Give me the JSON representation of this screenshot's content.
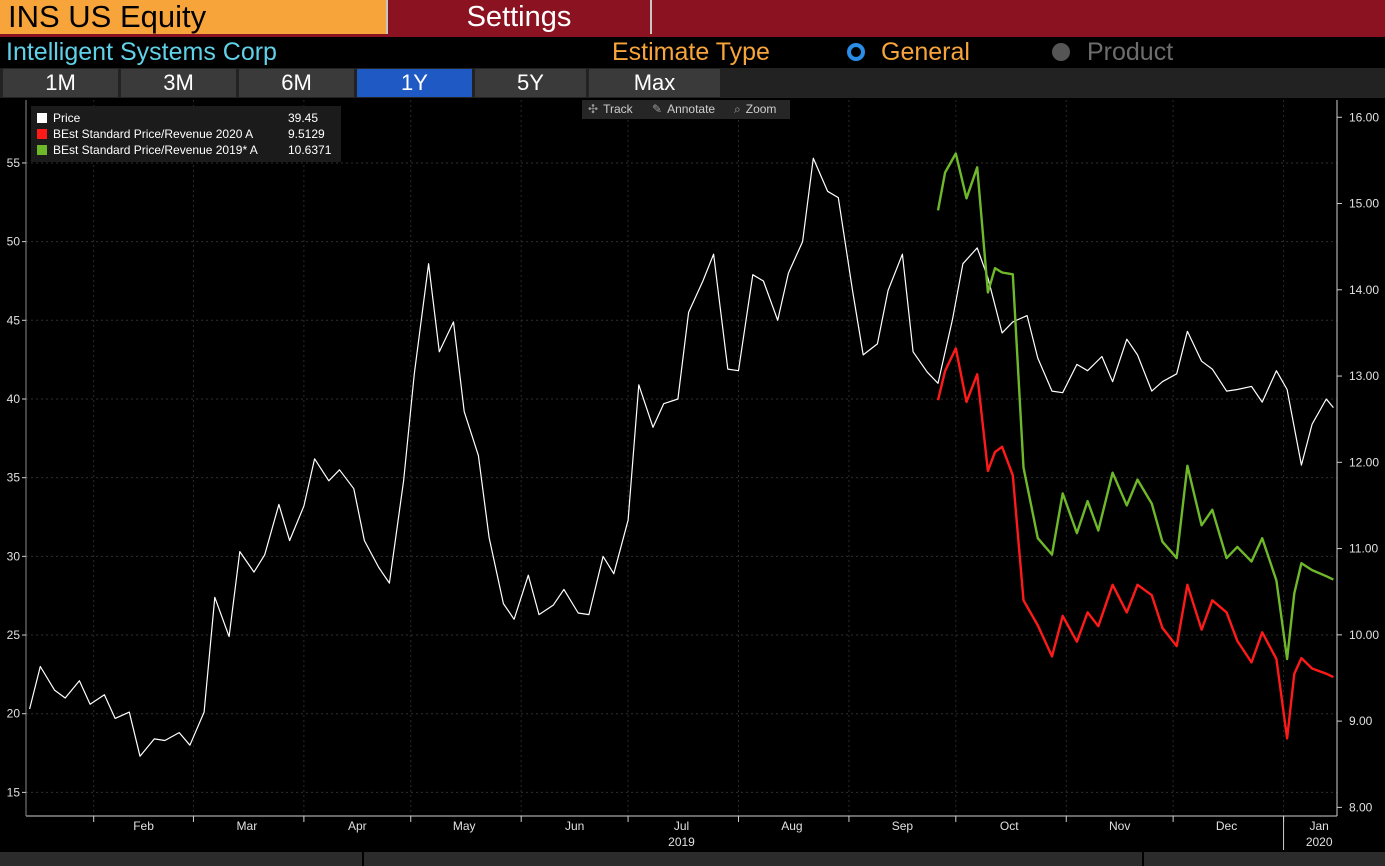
{
  "header": {
    "ticker": "INS US Equity",
    "settings_label": "Settings",
    "company": "Intelligent Systems Corp",
    "estimate_type_label": "Estimate Type",
    "option_general": "General",
    "option_product": "Product",
    "selected_option": "General"
  },
  "range_tabs": [
    "1M",
    "3M",
    "6M",
    "1Y",
    "5Y",
    "Max"
  ],
  "active_range": "1Y",
  "tools": {
    "track": "Track",
    "annotate": "Annotate",
    "zoom": "Zoom"
  },
  "legend": [
    {
      "name": "Price",
      "value": "39.45",
      "color": "#ffffff"
    },
    {
      "name": "BEst Standard Price/Revenue 2020 A",
      "value": "9.5129",
      "color": "#ff1a1a"
    },
    {
      "name": "BEst Standard Price/Revenue 2019* A",
      "value": "10.6371",
      "color": "#6fb82a"
    }
  ],
  "chart_data": {
    "type": "line",
    "title": "",
    "xlabel": "",
    "x_ticks": [
      "Feb",
      "Mar",
      "Apr",
      "May",
      "Jun",
      "Jul",
      "Aug",
      "Sep",
      "Oct",
      "Nov",
      "Dec",
      "Jan"
    ],
    "x_year_labels": [
      {
        "label": "2019",
        "under": "Jul"
      },
      {
        "label": "2020",
        "under": "Jan"
      }
    ],
    "x_range": [
      "2019-01-13",
      "2020-01-16"
    ],
    "left_axis": {
      "ticks": [
        15,
        20,
        25,
        30,
        35,
        40,
        45,
        50,
        55
      ],
      "ylim": [
        13.5,
        59.0
      ],
      "series": [
        "Price"
      ]
    },
    "right_axis": {
      "ticks": [
        "8.00",
        "9.00",
        "10.00",
        "11.00",
        "12.00",
        "13.00",
        "14.00",
        "15.00",
        "16.00"
      ],
      "ylim": [
        7.9,
        16.2
      ],
      "series": [
        "BEst Standard Price/Revenue 2020 A",
        "BEst Standard Price/Revenue 2019* A"
      ]
    },
    "grid": true,
    "legend_position": "top-left",
    "series": [
      {
        "name": "Price",
        "color": "#ffffff",
        "axis": "left",
        "x": [
          "2019-01-14",
          "2019-01-17",
          "2019-01-21",
          "2019-01-24",
          "2019-01-28",
          "2019-01-31",
          "2019-02-04",
          "2019-02-07",
          "2019-02-11",
          "2019-02-14",
          "2019-02-18",
          "2019-02-21",
          "2019-02-25",
          "2019-02-28",
          "2019-03-04",
          "2019-03-07",
          "2019-03-11",
          "2019-03-14",
          "2019-03-18",
          "2019-03-21",
          "2019-03-25",
          "2019-03-28",
          "2019-04-01",
          "2019-04-04",
          "2019-04-08",
          "2019-04-11",
          "2019-04-15",
          "2019-04-18",
          "2019-04-22",
          "2019-04-25",
          "2019-04-29",
          "2019-05-02",
          "2019-05-06",
          "2019-05-09",
          "2019-05-13",
          "2019-05-16",
          "2019-05-20",
          "2019-05-23",
          "2019-05-27",
          "2019-05-30",
          "2019-06-03",
          "2019-06-06",
          "2019-06-10",
          "2019-06-13",
          "2019-06-17",
          "2019-06-20",
          "2019-06-24",
          "2019-06-27",
          "2019-07-01",
          "2019-07-04",
          "2019-07-08",
          "2019-07-11",
          "2019-07-15",
          "2019-07-18",
          "2019-07-22",
          "2019-07-25",
          "2019-07-29",
          "2019-08-01",
          "2019-08-05",
          "2019-08-08",
          "2019-08-12",
          "2019-08-15",
          "2019-08-19",
          "2019-08-22",
          "2019-08-26",
          "2019-08-29",
          "2019-09-02",
          "2019-09-05",
          "2019-09-09",
          "2019-09-12",
          "2019-09-16",
          "2019-09-19",
          "2019-09-23",
          "2019-09-26",
          "2019-09-30",
          "2019-10-03",
          "2019-10-07",
          "2019-10-10",
          "2019-10-14",
          "2019-10-17",
          "2019-10-21",
          "2019-10-24",
          "2019-10-28",
          "2019-10-31",
          "2019-11-04",
          "2019-11-07",
          "2019-11-11",
          "2019-11-14",
          "2019-11-18",
          "2019-11-21",
          "2019-11-25",
          "2019-11-28",
          "2019-12-02",
          "2019-12-05",
          "2019-12-09",
          "2019-12-12",
          "2019-12-16",
          "2019-12-19",
          "2019-12-23",
          "2019-12-26",
          "2019-12-30",
          "2020-01-02",
          "2020-01-06",
          "2020-01-09",
          "2020-01-13",
          "2020-01-15"
        ],
        "values": [
          20.3,
          23.0,
          21.5,
          21.0,
          22.1,
          20.6,
          21.2,
          19.7,
          20.1,
          17.3,
          18.4,
          18.3,
          18.8,
          18.0,
          20.1,
          27.4,
          24.9,
          30.3,
          29.0,
          30.1,
          33.3,
          31.0,
          33.2,
          36.2,
          34.8,
          35.5,
          34.3,
          31.0,
          29.3,
          28.3,
          34.8,
          41.6,
          48.6,
          43.0,
          44.9,
          39.2,
          36.4,
          31.2,
          27.0,
          26.0,
          28.8,
          26.3,
          26.9,
          27.9,
          26.4,
          26.3,
          30.0,
          28.9,
          32.3,
          40.9,
          38.2,
          39.7,
          40.0,
          45.5,
          47.5,
          49.2,
          41.9,
          41.8,
          47.9,
          47.5,
          45.0,
          48.0,
          50.0,
          55.3,
          53.2,
          52.8,
          46.9,
          42.8,
          43.5,
          46.9,
          49.2,
          43.0,
          41.7,
          41.0,
          45.0,
          48.6,
          49.6,
          47.7,
          44.2,
          44.9,
          45.3,
          42.6,
          40.5,
          40.4,
          42.2,
          41.8,
          42.7,
          41.1,
          43.8,
          42.8,
          40.5,
          41.1,
          41.6,
          44.3,
          42.4,
          41.9,
          40.5,
          40.6,
          40.8,
          39.8,
          41.8,
          40.6,
          35.8,
          38.4,
          40.0,
          39.45
        ]
      },
      {
        "name": "BEst Standard Price/Revenue 2020 A",
        "color": "#ff1a1a",
        "axis": "right",
        "x": [
          "2019-09-26",
          "2019-09-28",
          "2019-10-01",
          "2019-10-04",
          "2019-10-07",
          "2019-10-10",
          "2019-10-12",
          "2019-10-14",
          "2019-10-17",
          "2019-10-20",
          "2019-10-24",
          "2019-10-28",
          "2019-10-31",
          "2019-11-04",
          "2019-11-07",
          "2019-11-10",
          "2019-11-14",
          "2019-11-18",
          "2019-11-21",
          "2019-11-25",
          "2019-11-28",
          "2019-12-02",
          "2019-12-05",
          "2019-12-09",
          "2019-12-12",
          "2019-12-16",
          "2019-12-19",
          "2019-12-23",
          "2019-12-26",
          "2019-12-30",
          "2020-01-02",
          "2020-01-04",
          "2020-01-06",
          "2020-01-09",
          "2020-01-13",
          "2020-01-15"
        ],
        "values": [
          12.72,
          13.06,
          13.32,
          12.7,
          13.02,
          11.9,
          12.12,
          12.18,
          11.85,
          10.4,
          10.11,
          9.75,
          10.22,
          9.92,
          10.26,
          10.1,
          10.58,
          10.26,
          10.58,
          10.46,
          10.08,
          9.87,
          10.58,
          10.06,
          10.4,
          10.26,
          9.93,
          9.68,
          10.03,
          9.72,
          8.8,
          9.55,
          9.73,
          9.61,
          9.55,
          9.51
        ]
      },
      {
        "name": "BEst Standard Price/Revenue 2019* A",
        "color": "#6fb82a",
        "axis": "right",
        "x": [
          "2019-09-26",
          "2019-09-28",
          "2019-10-01",
          "2019-10-04",
          "2019-10-07",
          "2019-10-10",
          "2019-10-12",
          "2019-10-14",
          "2019-10-17",
          "2019-10-20",
          "2019-10-24",
          "2019-10-28",
          "2019-10-31",
          "2019-11-04",
          "2019-11-07",
          "2019-11-10",
          "2019-11-14",
          "2019-11-18",
          "2019-11-21",
          "2019-11-25",
          "2019-11-28",
          "2019-12-02",
          "2019-12-05",
          "2019-12-09",
          "2019-12-12",
          "2019-12-16",
          "2019-12-19",
          "2019-12-23",
          "2019-12-26",
          "2019-12-30",
          "2020-01-02",
          "2020-01-04",
          "2020-01-06",
          "2020-01-09",
          "2020-01-13",
          "2020-01-15"
        ],
        "values": [
          14.92,
          15.36,
          15.58,
          15.06,
          15.42,
          13.97,
          14.25,
          14.2,
          14.18,
          11.94,
          11.12,
          10.93,
          11.64,
          11.18,
          11.55,
          11.21,
          11.88,
          11.5,
          11.8,
          11.52,
          11.08,
          10.89,
          11.96,
          11.27,
          11.45,
          10.89,
          11.02,
          10.85,
          11.12,
          10.63,
          9.72,
          10.48,
          10.83,
          10.75,
          10.68,
          10.64
        ]
      }
    ]
  }
}
